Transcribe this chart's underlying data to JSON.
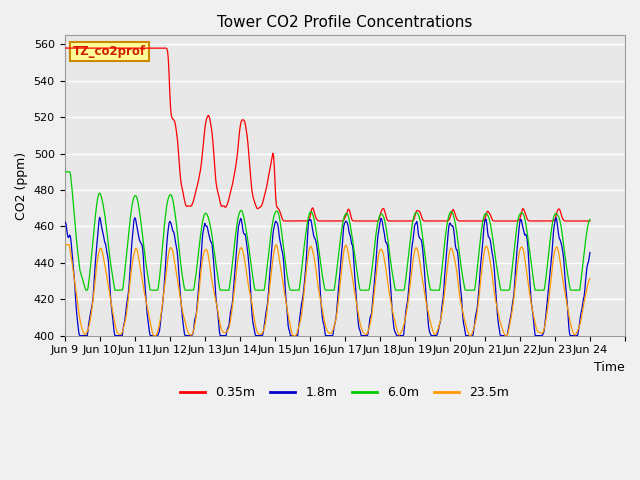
{
  "title": "Tower CO2 Profile Concentrations",
  "xlabel": "Time",
  "ylabel": "CO2 (ppm)",
  "ylim": [
    400,
    565
  ],
  "yticks": [
    400,
    420,
    440,
    460,
    480,
    500,
    520,
    540,
    560
  ],
  "xlim": [
    8,
    24
  ],
  "xtick_positions": [
    8,
    9,
    10,
    11,
    12,
    13,
    14,
    15,
    16,
    17,
    18,
    19,
    20,
    21,
    22,
    23,
    24
  ],
  "xtick_labels": [
    "Jun 9",
    "Jun 10",
    "Jun 11",
    "Jun 12",
    "Jun 13",
    "Jun 14",
    "Jun 15",
    "Jun 16",
    "Jun 17",
    "Jun 18",
    "Jun 19",
    "Jun 20",
    "Jun 21",
    "Jun 22",
    "Jun 23",
    "Jun 24",
    ""
  ],
  "legend_label": "TZ_co2prof",
  "series_labels": [
    "0.35m",
    "1.8m",
    "6.0m",
    "23.5m"
  ],
  "series_colors": [
    "#ff0000",
    "#0000cc",
    "#00cc00",
    "#ff9900"
  ],
  "fig_bg_color": "#f0f0f0",
  "plot_bg_color": "#e8e8e8",
  "title_fontsize": 11,
  "axis_label_fontsize": 9,
  "tick_fontsize": 8,
  "legend_box_facecolor": "#ffff99",
  "legend_box_edgecolor": "#cc8800",
  "legend_label_color": "#cc2200"
}
